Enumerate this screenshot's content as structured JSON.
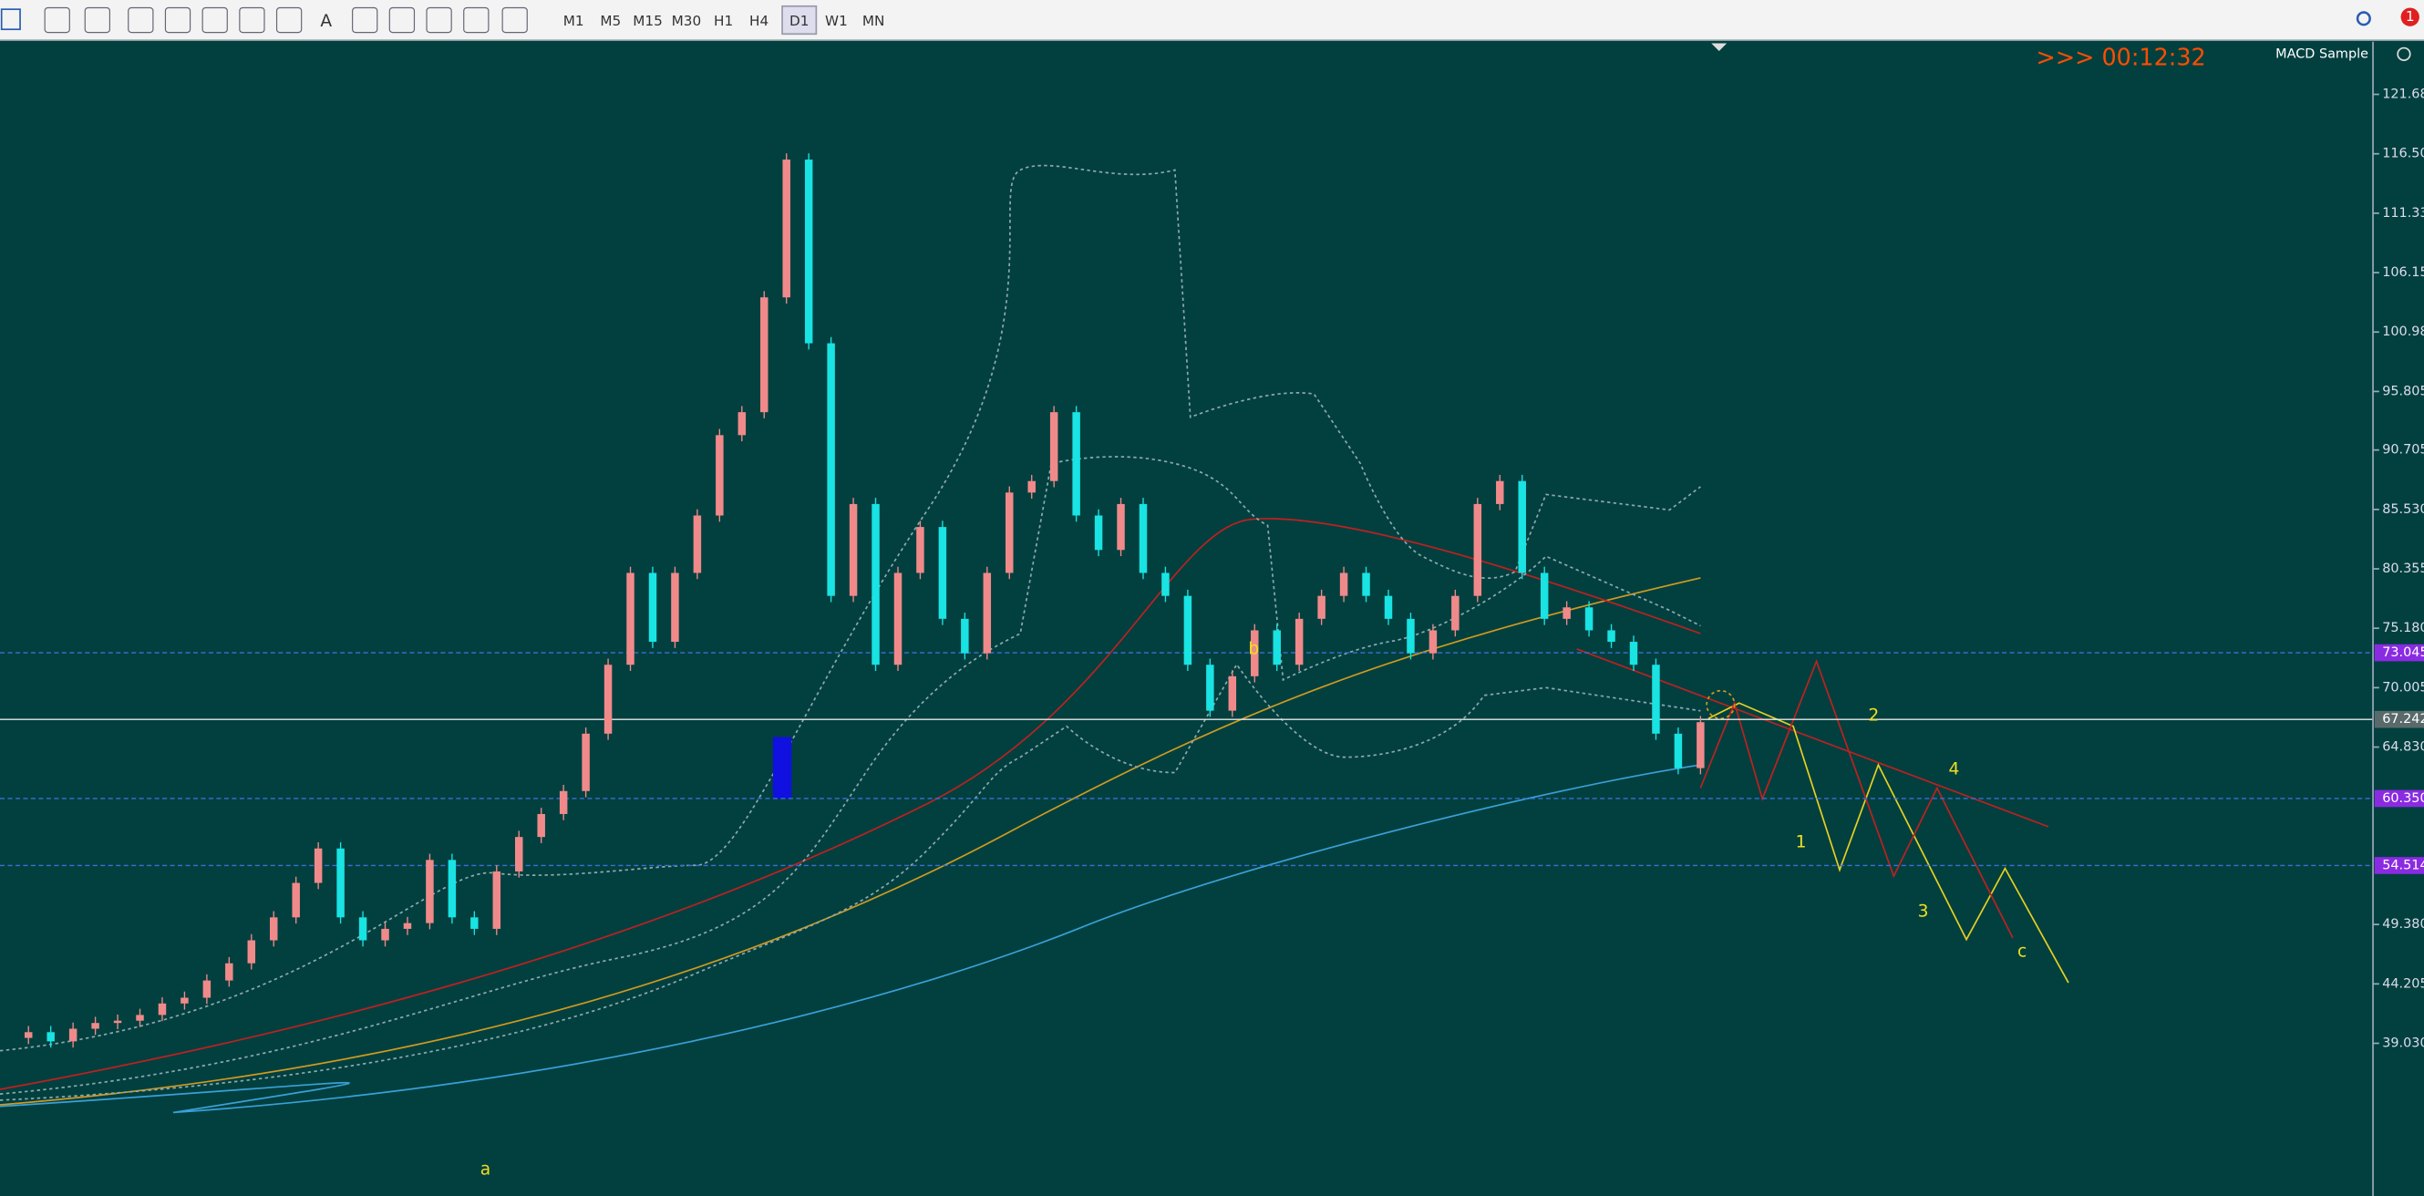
{
  "toolbar": {
    "timeframes": [
      "M1",
      "M5",
      "M15",
      "M30",
      "H1",
      "H4",
      "D1",
      "W1",
      "MN"
    ],
    "active": 6,
    "text_tool": "A",
    "notifications": "1"
  },
  "chart": {
    "timer": ">>> 00:12:32",
    "indicator": "MACD Sample",
    "ylim": [
      26,
      126.4
    ],
    "yticks": [
      {
        "value": 121.68,
        "label": "121.680"
      },
      {
        "value": 116.505,
        "label": "116.505"
      },
      {
        "value": 111.33,
        "label": "111.330"
      },
      {
        "value": 106.155,
        "label": "106.155"
      },
      {
        "value": 100.98,
        "label": "100.980"
      },
      {
        "value": 95.805,
        "label": "95.805"
      },
      {
        "value": 90.705,
        "label": "90.705"
      },
      {
        "value": 85.53,
        "label": "85.530"
      },
      {
        "value": 80.355,
        "label": "80.355"
      },
      {
        "value": 75.18,
        "label": "75.180"
      },
      {
        "value": 70.005,
        "label": "70.005"
      },
      {
        "value": 64.83,
        "label": "64.830"
      },
      {
        "value": 49.38,
        "label": "49.380"
      },
      {
        "value": 44.205,
        "label": "44.205"
      },
      {
        "value": 39.03,
        "label": "39.030"
      }
    ],
    "levels": [
      {
        "value": 73.045,
        "label": "73.045",
        "kind": "dashed"
      },
      {
        "value": 67.242,
        "label": "67.242",
        "kind": "current"
      },
      {
        "value": 60.35,
        "label": "60.350",
        "kind": "dashed"
      },
      {
        "value": 54.514,
        "label": "54.514",
        "kind": "dashed"
      }
    ],
    "closes": [
      39.5,
      40,
      39.2,
      40.3,
      40.8,
      41,
      41.5,
      42.5,
      43,
      44.5,
      46,
      48,
      50,
      53,
      56,
      50,
      48,
      49,
      49.5,
      55,
      50,
      49,
      54,
      57,
      59,
      61,
      66,
      72,
      80,
      74,
      80,
      85,
      92,
      94,
      104,
      116,
      100,
      78,
      86,
      72,
      80,
      84,
      76,
      73,
      80,
      87,
      88,
      94,
      85,
      82,
      86,
      80,
      78,
      72,
      68,
      71,
      75,
      72,
      76,
      78,
      80,
      78,
      76,
      73,
      75,
      78,
      86,
      88,
      80,
      76,
      77,
      75,
      74,
      72,
      66,
      63,
      67
    ],
    "wave_labels": [
      "1",
      "2",
      "3",
      "4",
      "c",
      "b",
      "a"
    ]
  }
}
